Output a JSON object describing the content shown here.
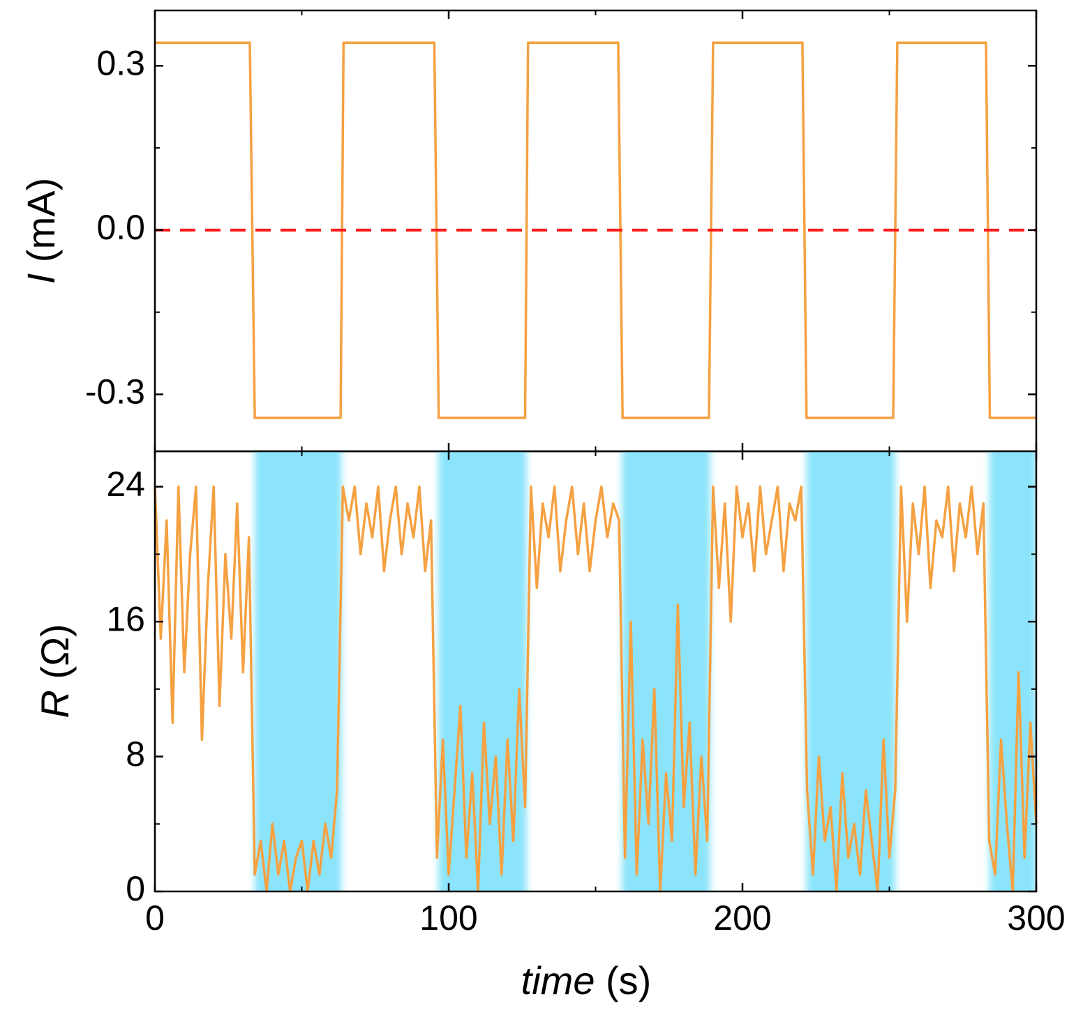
{
  "chart_data": [
    {
      "type": "line",
      "ylabel": {
        "symbol": "I",
        "unit": "(mA)"
      },
      "xlim": [
        0,
        300
      ],
      "ylim": [
        -0.404,
        0.401
      ],
      "yticks": [
        -0.3,
        {
          "value": 0,
          "label": "0.0"
        },
        0.3
      ],
      "yminorticks": [
        -0.15,
        0.15
      ],
      "reference_line": {
        "value": 0,
        "color": "#ff1a1a"
      },
      "x": [
        0,
        32.3,
        34,
        63.2,
        64.2,
        95.1,
        96.6,
        126,
        127,
        157.7,
        159.2,
        188.6,
        190,
        220.4,
        221.8,
        251.3,
        252.7,
        282.9,
        284.2,
        300
      ],
      "series": [
        {
          "color": "#f5a142",
          "values": [
            0.342,
            0.342,
            -0.343,
            -0.343,
            0.342,
            0.342,
            -0.343,
            -0.343,
            0.342,
            0.342,
            -0.343,
            -0.343,
            0.342,
            0.342,
            -0.343,
            -0.343,
            0.342,
            0.342,
            -0.343,
            -0.343
          ]
        }
      ]
    },
    {
      "type": "line",
      "ylabel": {
        "symbol": "R",
        "unit": "(Ω)"
      },
      "xlabel": {
        "symbol": "time",
        "unit": "(s)"
      },
      "xlim": [
        0,
        300
      ],
      "xticks": [
        0,
        100,
        200,
        300
      ],
      "xminorticks": [
        50,
        150,
        250
      ],
      "ylim": [
        0,
        26.1
      ],
      "yticks": [
        0,
        8,
        16,
        24
      ],
      "yminorticks": [
        4,
        12,
        20
      ],
      "shaded_regions": {
        "color": "#8be4fb",
        "spans": [
          [
            34,
            63.5
          ],
          [
            96.5,
            126.5
          ],
          [
            159,
            189
          ],
          [
            221.8,
            252
          ],
          [
            284,
            300
          ]
        ]
      },
      "x": [
        0,
        2,
        4,
        6,
        8,
        10,
        12,
        14,
        16,
        18,
        20,
        22,
        24,
        26,
        28,
        30,
        32,
        34,
        36,
        38,
        40,
        42,
        44,
        46,
        48,
        50,
        52,
        54,
        56,
        58,
        60,
        62,
        64,
        66,
        68,
        70,
        72,
        74,
        76,
        78,
        80,
        82,
        84,
        86,
        88,
        90,
        92,
        94,
        96,
        98,
        100,
        102,
        104,
        106,
        108,
        110,
        112,
        114,
        116,
        118,
        120,
        122,
        124,
        126,
        128,
        130,
        132,
        134,
        136,
        138,
        140,
        142,
        144,
        146,
        148,
        150,
        152,
        154,
        156,
        158,
        160,
        162,
        164,
        166,
        168,
        170,
        172,
        174,
        176,
        178,
        180,
        182,
        184,
        186,
        188,
        190,
        192,
        194,
        196,
        198,
        200,
        202,
        204,
        206,
        208,
        210,
        212,
        214,
        216,
        218,
        220,
        222,
        224,
        226,
        228,
        230,
        232,
        234,
        236,
        238,
        240,
        242,
        244,
        246,
        248,
        250,
        252,
        254,
        256,
        258,
        260,
        262,
        264,
        266,
        268,
        270,
        272,
        274,
        276,
        278,
        280,
        282,
        284,
        286,
        288,
        290,
        292,
        294,
        296,
        298,
        300
      ],
      "series": [
        {
          "color": "#f5a142",
          "values": [
            24,
            15,
            22,
            10,
            24,
            13,
            20,
            24,
            9,
            18,
            24,
            11,
            20,
            15,
            23,
            13,
            21,
            1,
            3,
            0,
            4,
            1,
            3,
            0,
            2,
            3,
            0,
            3,
            1,
            4,
            2,
            6,
            24,
            22,
            24,
            20,
            23,
            21,
            24,
            19,
            22,
            24,
            20,
            23,
            21,
            24,
            19,
            22,
            2,
            9,
            1,
            6,
            11,
            2,
            7,
            0,
            10,
            4,
            8,
            1,
            9,
            3,
            12,
            5,
            24,
            18,
            23,
            21,
            24,
            19,
            22,
            24,
            20,
            23,
            19,
            22,
            24,
            21,
            23,
            22,
            2,
            16,
            1,
            9,
            4,
            12,
            0,
            7,
            3,
            17,
            5,
            10,
            1,
            8,
            3,
            24,
            18,
            23,
            16,
            24,
            21,
            23,
            19,
            24,
            20,
            22,
            24,
            19,
            23,
            22,
            24,
            6,
            1,
            8,
            3,
            5,
            0,
            7,
            2,
            4,
            1,
            6,
            3,
            0,
            9,
            2,
            6,
            24,
            16,
            23,
            20,
            24,
            18,
            22,
            21,
            24,
            19,
            23,
            21,
            24,
            20,
            23,
            3,
            1,
            9,
            4,
            0,
            13,
            2,
            10,
            4
          ]
        }
      ]
    }
  ]
}
